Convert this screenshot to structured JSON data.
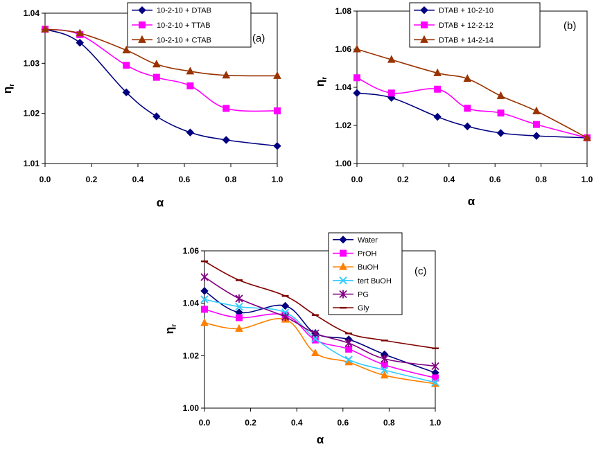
{
  "chart_data": [
    {
      "type": "line",
      "panel_label": "(a)",
      "xlabel": "α",
      "ylabel": "η",
      "ylabel_sub": "r",
      "xlim": [
        0,
        1
      ],
      "ylim": [
        1.01,
        1.04
      ],
      "xticks": [
        0.0,
        0.2,
        0.4,
        0.6,
        0.8,
        1.0
      ],
      "xtick_labels": [
        "0.0",
        "0.2",
        "0.4",
        "0.6",
        "0.8",
        "1.0"
      ],
      "yticks": [
        1.01,
        1.02,
        1.03,
        1.04
      ],
      "ytick_labels": [
        "1.01",
        "1.02",
        "1.03",
        "1.04"
      ],
      "legend_position": "top-center",
      "series": [
        {
          "name": "10-2-10 + DTAB",
          "color": "#000080",
          "marker": "diamond",
          "x": [
            0,
            0.15,
            0.35,
            0.48,
            0.625,
            0.78,
            1.0
          ],
          "y": [
            1.0368,
            1.0341,
            1.0242,
            1.0194,
            1.0162,
            1.0147,
            1.0135
          ]
        },
        {
          "name": "10-2-10 + TTAB",
          "color": "#ff00ff",
          "marker": "square",
          "x": [
            0,
            0.15,
            0.35,
            0.48,
            0.625,
            0.78,
            1.0
          ],
          "y": [
            1.0368,
            1.0357,
            1.0296,
            1.0272,
            1.0255,
            1.021,
            1.0205
          ]
        },
        {
          "name": "10-2-10 + CTAB",
          "color": "#993300",
          "marker": "triangle",
          "x": [
            0,
            0.15,
            0.35,
            0.48,
            0.625,
            0.78,
            1.0
          ],
          "y": [
            1.0368,
            1.036,
            1.0326,
            1.0298,
            1.0284,
            1.0276,
            1.0275
          ]
        }
      ]
    },
    {
      "type": "line",
      "panel_label": "(b)",
      "xlabel": "α",
      "ylabel": "η",
      "ylabel_sub": "r",
      "xlim": [
        0,
        1
      ],
      "ylim": [
        1.0,
        1.08
      ],
      "xticks": [
        0.0,
        0.2,
        0.4,
        0.6,
        0.8,
        1.0
      ],
      "xtick_labels": [
        "0.0",
        "0.2",
        "0.4",
        "0.6",
        "0.8",
        "1.0"
      ],
      "yticks": [
        1.0,
        1.02,
        1.04,
        1.06,
        1.08
      ],
      "ytick_labels": [
        "1.00",
        "1.02",
        "1.04",
        "1.06",
        "1.08"
      ],
      "legend_position": "top-center",
      "series": [
        {
          "name": "DTAB + 10-2-10",
          "color": "#000080",
          "marker": "diamond",
          "x": [
            0,
            0.15,
            0.35,
            0.48,
            0.625,
            0.78,
            1.0
          ],
          "y": [
            1.037,
            1.0345,
            1.0245,
            1.0195,
            1.016,
            1.0145,
            1.0135
          ]
        },
        {
          "name": "DTAB + 12-2-12",
          "color": "#ff00ff",
          "marker": "square",
          "x": [
            0,
            0.15,
            0.35,
            0.48,
            0.625,
            0.78,
            1.0
          ],
          "y": [
            1.045,
            1.037,
            1.039,
            1.029,
            1.0265,
            1.0205,
            1.0135
          ]
        },
        {
          "name": "DTAB + 14-2-14",
          "color": "#993300",
          "marker": "triangle",
          "x": [
            0,
            0.15,
            0.35,
            0.48,
            0.625,
            0.78,
            1.0
          ],
          "y": [
            1.06,
            1.0545,
            1.0475,
            1.0445,
            1.0355,
            1.0275,
            1.0135
          ]
        }
      ]
    },
    {
      "type": "line",
      "panel_label": "(c)",
      "xlabel": "α",
      "ylabel": "η",
      "ylabel_sub": "r",
      "xlim": [
        0,
        1
      ],
      "ylim": [
        1.0,
        1.06
      ],
      "xticks": [
        0.0,
        0.2,
        0.4,
        0.6,
        0.8,
        1.0
      ],
      "xtick_labels": [
        "0.0",
        "0.2",
        "0.4",
        "0.6",
        "0.8",
        "1.0"
      ],
      "yticks": [
        1.0,
        1.02,
        1.04,
        1.06
      ],
      "ytick_labels": [
        "1.00",
        "1.02",
        "1.04",
        "1.06"
      ],
      "legend_position": "top-center",
      "series": [
        {
          "name": "Water",
          "color": "#000080",
          "marker": "diamond",
          "x": [
            0,
            0.15,
            0.35,
            0.48,
            0.625,
            0.78,
            1.0
          ],
          "y": [
            1.0447,
            1.0365,
            1.039,
            1.0285,
            1.0262,
            1.0205,
            1.0135
          ]
        },
        {
          "name": "PrOH",
          "color": "#ff00ff",
          "marker": "square",
          "x": [
            0,
            0.15,
            0.35,
            0.48,
            0.625,
            0.78,
            1.0
          ],
          "y": [
            1.0377,
            1.0345,
            1.0355,
            1.026,
            1.0225,
            1.0165,
            1.0115
          ]
        },
        {
          "name": "BuOH",
          "color": "#ff8000",
          "marker": "triangle",
          "x": [
            0,
            0.15,
            0.35,
            0.48,
            0.625,
            0.78,
            1.0
          ],
          "y": [
            1.0325,
            1.0303,
            1.0338,
            1.021,
            1.0175,
            1.0125,
            1.0093
          ]
        },
        {
          "name": "tert BuOH",
          "color": "#33ccff",
          "marker": "x",
          "x": [
            0,
            0.15,
            0.35,
            0.48,
            0.625,
            0.78,
            1.0
          ],
          "y": [
            1.0415,
            1.0387,
            1.0365,
            1.0265,
            1.0185,
            1.0145,
            1.0098
          ]
        },
        {
          "name": "PG",
          "color": "#800080",
          "marker": "star",
          "x": [
            0,
            0.15,
            0.35,
            0.48,
            0.625,
            0.78,
            1.0
          ],
          "y": [
            1.05,
            1.0418,
            1.0348,
            1.0285,
            1.0248,
            1.0188,
            1.016
          ]
        },
        {
          "name": "Gly",
          "color": "#800000",
          "marker": "dash",
          "x": [
            0,
            0.15,
            0.35,
            0.48,
            0.625,
            0.78,
            1.0
          ],
          "y": [
            1.056,
            1.0488,
            1.0428,
            1.0355,
            1.0285,
            1.0258,
            1.0228
          ]
        }
      ]
    }
  ]
}
